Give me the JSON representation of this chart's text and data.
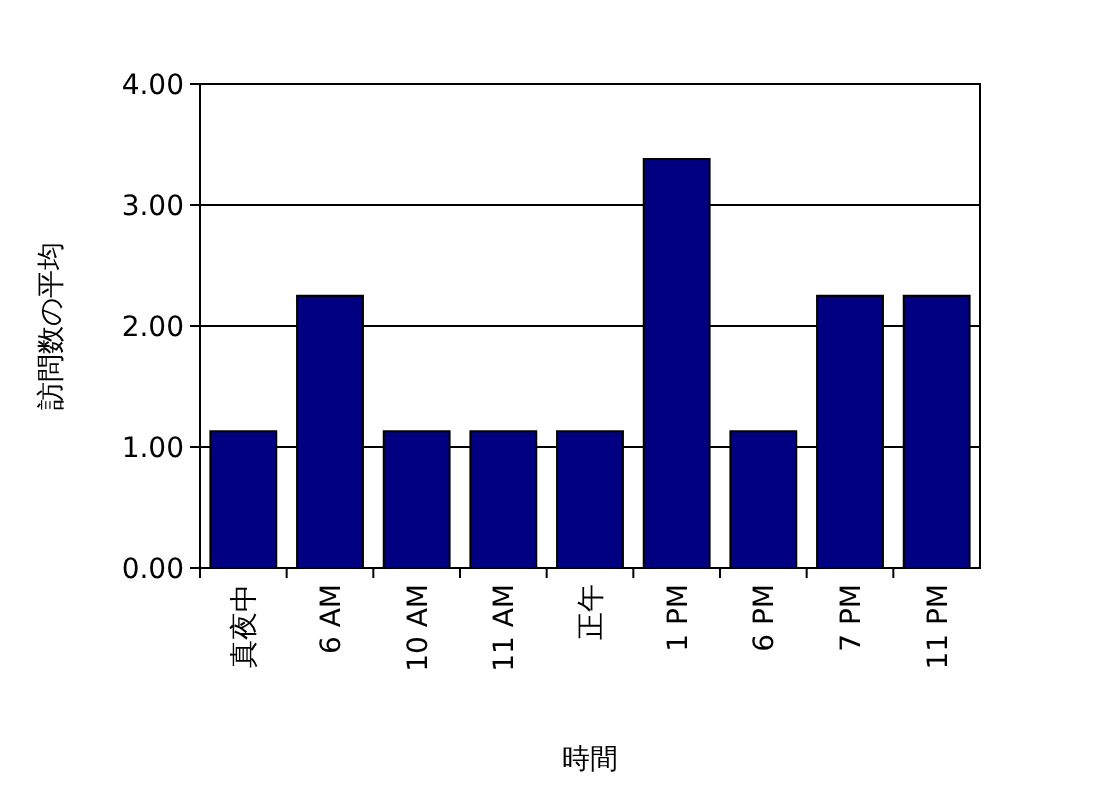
{
  "chart_data": {
    "type": "bar",
    "xlabel": "時間",
    "ylabel": "訪問数の平均",
    "categories": [
      "真夜中",
      "6 AM",
      "10 AM",
      "11 AM",
      "正午",
      "1 PM",
      "6 PM",
      "7 PM",
      "11 PM"
    ],
    "values": [
      1.13,
      2.25,
      1.13,
      1.13,
      1.13,
      3.38,
      1.13,
      2.25,
      2.25
    ],
    "color": "#000080",
    "ylim": [
      0,
      4
    ],
    "yticks": [
      {
        "value": 0,
        "label": "0.00"
      },
      {
        "value": 1,
        "label": "1.00"
      },
      {
        "value": 2,
        "label": "2.00"
      },
      {
        "value": 3,
        "label": "3.00"
      },
      {
        "value": 4,
        "label": "4.00"
      }
    ],
    "grid": "y"
  }
}
